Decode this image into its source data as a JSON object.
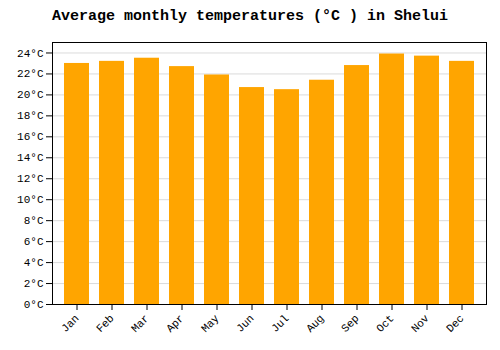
{
  "chart_data": {
    "type": "bar",
    "title": "Average monthly temperatures (°C ) in Shelui",
    "categories": [
      "Jan",
      "Feb",
      "Mar",
      "Apr",
      "May",
      "Jun",
      "Jul",
      "Aug",
      "Sep",
      "Oct",
      "Nov",
      "Dec"
    ],
    "values": [
      23.0,
      23.2,
      23.5,
      22.7,
      21.9,
      20.7,
      20.5,
      21.4,
      22.8,
      23.9,
      23.7,
      23.2
    ],
    "color": "#FFA500",
    "ylim": [
      0,
      25
    ],
    "yticks": [
      {
        "value": 0,
        "label": "0°C"
      },
      {
        "value": 2,
        "label": "2°C"
      },
      {
        "value": 4,
        "label": "4°C"
      },
      {
        "value": 6,
        "label": "6°C"
      },
      {
        "value": 8,
        "label": "8°C"
      },
      {
        "value": 10,
        "label": "10°C"
      },
      {
        "value": 12,
        "label": "12°C"
      },
      {
        "value": 14,
        "label": "14°C"
      },
      {
        "value": 16,
        "label": "16°C"
      },
      {
        "value": 18,
        "label": "18°C"
      },
      {
        "value": 20,
        "label": "20°C"
      },
      {
        "value": 22,
        "label": "22°C"
      },
      {
        "value": 24,
        "label": "24°C"
      }
    ],
    "grid": true
  }
}
